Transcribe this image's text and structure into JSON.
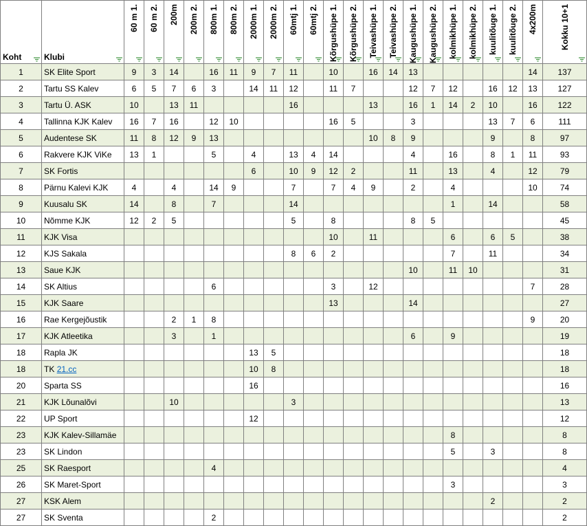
{
  "table": {
    "headers": {
      "koht": "Koht",
      "klubi": "Klubi",
      "events": [
        "60 m 1.",
        "60 m 2.",
        "200m",
        "200m 2.",
        "800m 1.",
        "800m 2.",
        "2000m 1.",
        "2000m 2.",
        "60mtj 1.",
        "60mtj 2.",
        "Kõrgushüpe 1.",
        "Kõrgushüpe 2.",
        "Teivashüpe 1.",
        "Teivashüpe 2.",
        "Kaugushüpe 1.",
        "Kaugushüpe 2.",
        "kolmikhüpe 1.",
        "kolmikhüpe 2.",
        "kuulitõuge 1.",
        "kuulitõuge 2.",
        "4x200m"
      ],
      "total": "Kokku 10+1"
    },
    "rows": [
      {
        "koht": 1,
        "klubi": "SK Elite Sport",
        "points": [
          9,
          3,
          14,
          null,
          16,
          11,
          9,
          7,
          11,
          null,
          10,
          null,
          16,
          14,
          13,
          null,
          null,
          null,
          null,
          null,
          14
        ],
        "total": 137
      },
      {
        "koht": 2,
        "klubi": "Tartu SS Kalev",
        "points": [
          6,
          5,
          7,
          6,
          3,
          null,
          14,
          11,
          12,
          null,
          11,
          7,
          null,
          null,
          12,
          7,
          12,
          null,
          16,
          12,
          13
        ],
        "total": 127
      },
      {
        "koht": 3,
        "klubi": "Tartu Ü. ASK",
        "points": [
          10,
          null,
          13,
          11,
          null,
          null,
          null,
          null,
          16,
          null,
          null,
          null,
          13,
          null,
          16,
          1,
          14,
          2,
          10,
          null,
          16
        ],
        "total": 122
      },
      {
        "koht": 4,
        "klubi": "Tallinna KJK Kalev",
        "points": [
          16,
          7,
          16,
          null,
          12,
          10,
          null,
          null,
          null,
          null,
          16,
          5,
          null,
          null,
          3,
          null,
          null,
          null,
          13,
          7,
          6
        ],
        "total": 111
      },
      {
        "koht": 5,
        "klubi": "Audentese SK",
        "points": [
          11,
          8,
          12,
          9,
          13,
          null,
          null,
          null,
          null,
          null,
          null,
          null,
          10,
          8,
          9,
          null,
          null,
          null,
          9,
          null,
          8
        ],
        "total": 97
      },
      {
        "koht": 6,
        "klubi": "Rakvere KJK ViKe",
        "points": [
          13,
          1,
          null,
          null,
          5,
          null,
          4,
          null,
          13,
          4,
          14,
          null,
          null,
          null,
          4,
          null,
          16,
          null,
          8,
          1,
          11
        ],
        "total": 93
      },
      {
        "koht": 7,
        "klubi": "SK Fortis",
        "points": [
          null,
          null,
          null,
          null,
          null,
          null,
          6,
          null,
          10,
          9,
          12,
          2,
          null,
          null,
          11,
          null,
          13,
          null,
          4,
          null,
          12
        ],
        "total": 79
      },
      {
        "koht": 8,
        "klubi": "Pärnu Kalevi KJK",
        "points": [
          4,
          null,
          4,
          null,
          14,
          9,
          null,
          null,
          7,
          null,
          7,
          4,
          9,
          null,
          2,
          null,
          4,
          null,
          null,
          null,
          10
        ],
        "total": 74
      },
      {
        "koht": 9,
        "klubi": "Kuusalu SK",
        "points": [
          14,
          null,
          8,
          null,
          7,
          null,
          null,
          null,
          14,
          null,
          null,
          null,
          null,
          null,
          null,
          null,
          1,
          null,
          14,
          null,
          null
        ],
        "total": 58
      },
      {
        "koht": 10,
        "klubi": "Nõmme KJK",
        "points": [
          12,
          2,
          5,
          null,
          null,
          null,
          null,
          null,
          5,
          null,
          8,
          null,
          null,
          null,
          8,
          5,
          null,
          null,
          null,
          null,
          null
        ],
        "total": 45
      },
      {
        "koht": 11,
        "klubi": "KJK Visa",
        "points": [
          null,
          null,
          null,
          null,
          null,
          null,
          null,
          null,
          null,
          null,
          10,
          null,
          11,
          null,
          null,
          null,
          6,
          null,
          6,
          5,
          null
        ],
        "total": 38
      },
      {
        "koht": 12,
        "klubi": "KJS Sakala",
        "points": [
          null,
          null,
          null,
          null,
          null,
          null,
          null,
          null,
          8,
          6,
          2,
          null,
          null,
          null,
          null,
          null,
          7,
          null,
          11,
          null,
          null
        ],
        "total": 34
      },
      {
        "koht": 13,
        "klubi": "Saue KJK",
        "points": [
          null,
          null,
          null,
          null,
          null,
          null,
          null,
          null,
          null,
          null,
          null,
          null,
          null,
          null,
          10,
          null,
          11,
          10,
          null,
          null,
          null
        ],
        "total": 31
      },
      {
        "koht": 14,
        "klubi": "SK Altius",
        "points": [
          null,
          null,
          null,
          null,
          6,
          null,
          null,
          null,
          null,
          null,
          3,
          null,
          12,
          null,
          null,
          null,
          null,
          null,
          null,
          null,
          7
        ],
        "total": 28
      },
      {
        "koht": 15,
        "klubi": "KJK Saare",
        "points": [
          null,
          null,
          null,
          null,
          null,
          null,
          null,
          null,
          null,
          null,
          13,
          null,
          null,
          null,
          14,
          null,
          null,
          null,
          null,
          null,
          null
        ],
        "total": 27
      },
      {
        "koht": 16,
        "klubi": "Rae Kergejõustik",
        "points": [
          null,
          null,
          2,
          1,
          8,
          null,
          null,
          null,
          null,
          null,
          null,
          null,
          null,
          null,
          null,
          null,
          null,
          null,
          null,
          null,
          9
        ],
        "total": 20
      },
      {
        "koht": 17,
        "klubi": "KJK Atleetika",
        "points": [
          null,
          null,
          3,
          null,
          1,
          null,
          null,
          null,
          null,
          null,
          null,
          null,
          null,
          null,
          6,
          null,
          9,
          null,
          null,
          null,
          null
        ],
        "total": 19
      },
      {
        "koht": 18,
        "klubi": "Rapla JK",
        "points": [
          null,
          null,
          null,
          null,
          null,
          null,
          13,
          5,
          null,
          null,
          null,
          null,
          null,
          null,
          null,
          null,
          null,
          null,
          null,
          null,
          null
        ],
        "total": 18
      },
      {
        "koht": 18,
        "klubi": {
          "prefix": "TK",
          "link": "21.cc"
        },
        "points": [
          null,
          null,
          null,
          null,
          null,
          null,
          10,
          8,
          null,
          null,
          null,
          null,
          null,
          null,
          null,
          null,
          null,
          null,
          null,
          null,
          null
        ],
        "total": 18
      },
      {
        "koht": 20,
        "klubi": "Sparta SS",
        "points": [
          null,
          null,
          null,
          null,
          null,
          null,
          16,
          null,
          null,
          null,
          null,
          null,
          null,
          null,
          null,
          null,
          null,
          null,
          null,
          null,
          null
        ],
        "total": 16
      },
      {
        "koht": 21,
        "klubi": "KJK Lõunalõvi",
        "points": [
          null,
          null,
          10,
          null,
          null,
          null,
          null,
          null,
          3,
          null,
          null,
          null,
          null,
          null,
          null,
          null,
          null,
          null,
          null,
          null,
          null
        ],
        "total": 13
      },
      {
        "koht": 22,
        "klubi": "UP Sport",
        "points": [
          null,
          null,
          null,
          null,
          null,
          null,
          12,
          null,
          null,
          null,
          null,
          null,
          null,
          null,
          null,
          null,
          null,
          null,
          null,
          null,
          null
        ],
        "total": 12
      },
      {
        "koht": 23,
        "klubi": "KJK Kalev-Sillamäe",
        "points": [
          null,
          null,
          null,
          null,
          null,
          null,
          null,
          null,
          null,
          null,
          null,
          null,
          null,
          null,
          null,
          null,
          8,
          null,
          null,
          null,
          null
        ],
        "total": 8
      },
      {
        "koht": 23,
        "klubi": "SK Lindon",
        "points": [
          null,
          null,
          null,
          null,
          null,
          null,
          null,
          null,
          null,
          null,
          null,
          null,
          null,
          null,
          null,
          null,
          5,
          null,
          3,
          null,
          null
        ],
        "total": 8
      },
      {
        "koht": 25,
        "klubi": "SK Raesport",
        "points": [
          null,
          null,
          null,
          null,
          4,
          null,
          null,
          null,
          null,
          null,
          null,
          null,
          null,
          null,
          null,
          null,
          null,
          null,
          null,
          null,
          null
        ],
        "total": 4
      },
      {
        "koht": 26,
        "klubi": "SK Maret-Sport",
        "points": [
          null,
          null,
          null,
          null,
          null,
          null,
          null,
          null,
          null,
          null,
          null,
          null,
          null,
          null,
          null,
          null,
          3,
          null,
          null,
          null,
          null
        ],
        "total": 3
      },
      {
        "koht": 27,
        "klubi": "KSK Alem",
        "points": [
          null,
          null,
          null,
          null,
          null,
          null,
          null,
          null,
          null,
          null,
          null,
          null,
          null,
          null,
          null,
          null,
          null,
          null,
          2,
          null,
          null
        ],
        "total": 2
      },
      {
        "koht": 27,
        "klubi": "SK Sventa",
        "points": [
          null,
          null,
          null,
          null,
          2,
          null,
          null,
          null,
          null,
          null,
          null,
          null,
          null,
          null,
          null,
          null,
          null,
          null,
          null,
          null,
          null
        ],
        "total": 2
      }
    ]
  }
}
